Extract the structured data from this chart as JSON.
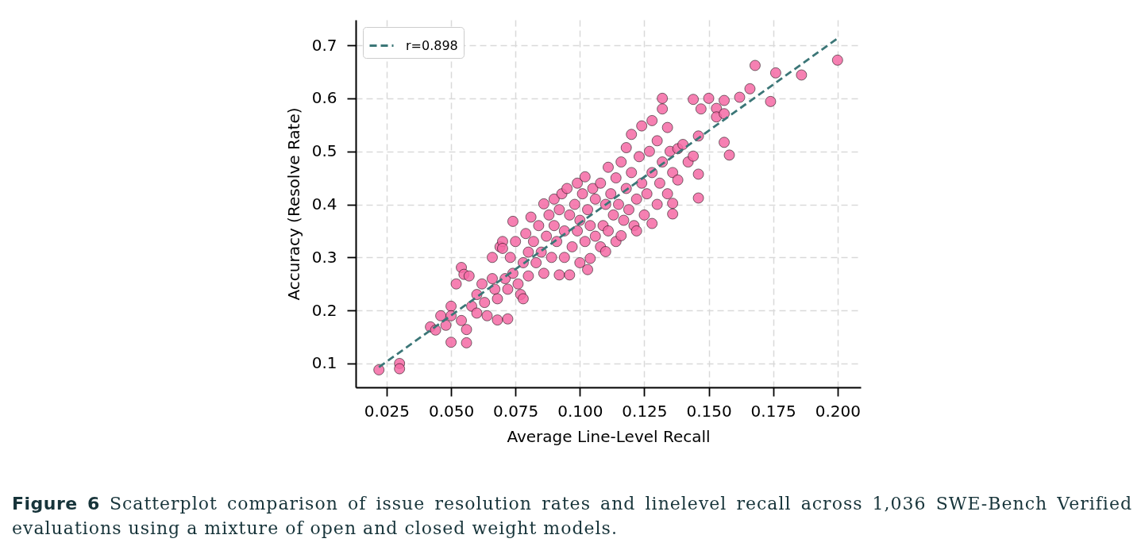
{
  "chart_data": {
    "type": "scatter",
    "xlabel": "Average Line-Level Recall",
    "ylabel": "Accuracy (Resolve Rate)",
    "xlim": [
      0.013,
      0.209
    ],
    "ylim": [
      0.055,
      0.748
    ],
    "xticks": [
      0.025,
      {
        "value": 0.05,
        "label": "0.050"
      },
      0.075,
      {
        "value": 0.1,
        "label": "0.100"
      },
      0.125,
      {
        "value": 0.15,
        "label": "0.150"
      },
      0.175,
      {
        "value": 0.2,
        "label": "0.200"
      }
    ],
    "yticks": [
      0.1,
      0.2,
      0.3,
      0.4,
      0.5,
      0.6,
      0.7
    ],
    "grid": true,
    "legend": "top left",
    "annotations": [
      "Figure 6",
      "Scatterplot comparison of issue resolution rates and linelevel recall across 1,036 SWE-Bench Verified evaluations using a mixture of open and closed weight models."
    ],
    "series": [
      {
        "type": "scatter",
        "color": "#f46aa5",
        "marker": "circle",
        "x": [
          0.022,
          0.03,
          0.03,
          0.042,
          0.044,
          0.046,
          0.048,
          0.05,
          0.05,
          0.05,
          0.052,
          0.054,
          0.054,
          0.055,
          0.056,
          0.056,
          0.057,
          0.058,
          0.06,
          0.06,
          0.062,
          0.063,
          0.064,
          0.066,
          0.066,
          0.067,
          0.068,
          0.068,
          0.069,
          0.07,
          0.07,
          0.071,
          0.072,
          0.072,
          0.073,
          0.074,
          0.074,
          0.075,
          0.076,
          0.077,
          0.078,
          0.078,
          0.079,
          0.08,
          0.08,
          0.081,
          0.082,
          0.083,
          0.084,
          0.085,
          0.086,
          0.086,
          0.087,
          0.088,
          0.089,
          0.09,
          0.09,
          0.091,
          0.092,
          0.092,
          0.093,
          0.094,
          0.094,
          0.095,
          0.096,
          0.096,
          0.097,
          0.098,
          0.099,
          0.099,
          0.1,
          0.1,
          0.101,
          0.102,
          0.102,
          0.103,
          0.103,
          0.104,
          0.104,
          0.105,
          0.106,
          0.106,
          0.108,
          0.108,
          0.109,
          0.11,
          0.11,
          0.111,
          0.111,
          0.112,
          0.113,
          0.114,
          0.114,
          0.115,
          0.116,
          0.116,
          0.117,
          0.118,
          0.118,
          0.119,
          0.12,
          0.12,
          0.121,
          0.122,
          0.122,
          0.123,
          0.124,
          0.124,
          0.125,
          0.126,
          0.127,
          0.128,
          0.128,
          0.128,
          0.13,
          0.13,
          0.131,
          0.132,
          0.132,
          0.132,
          0.134,
          0.134,
          0.135,
          0.136,
          0.136,
          0.136,
          0.138,
          0.138,
          0.14,
          0.142,
          0.144,
          0.144,
          0.146,
          0.146,
          0.146,
          0.147,
          0.15,
          0.153,
          0.153,
          0.156,
          0.156,
          0.156,
          0.158,
          0.162,
          0.166,
          0.168,
          0.174,
          0.176,
          0.186,
          0.2
        ],
        "values": [
          0.088,
          0.1,
          0.09,
          0.169,
          0.163,
          0.19,
          0.172,
          0.208,
          0.19,
          0.14,
          0.25,
          0.181,
          0.281,
          0.268,
          0.139,
          0.164,
          0.265,
          0.208,
          0.23,
          0.195,
          0.25,
          0.215,
          0.19,
          0.3,
          0.26,
          0.24,
          0.182,
          0.222,
          0.32,
          0.33,
          0.317,
          0.26,
          0.184,
          0.24,
          0.3,
          0.368,
          0.27,
          0.33,
          0.25,
          0.23,
          0.222,
          0.29,
          0.345,
          0.31,
          0.265,
          0.376,
          0.33,
          0.29,
          0.36,
          0.31,
          0.401,
          0.27,
          0.34,
          0.38,
          0.3,
          0.36,
          0.41,
          0.33,
          0.267,
          0.39,
          0.42,
          0.3,
          0.35,
          0.43,
          0.267,
          0.38,
          0.32,
          0.4,
          0.44,
          0.35,
          0.29,
          0.37,
          0.42,
          0.33,
          0.452,
          0.277,
          0.39,
          0.298,
          0.36,
          0.43,
          0.34,
          0.41,
          0.44,
          0.32,
          0.36,
          0.311,
          0.4,
          0.47,
          0.35,
          0.42,
          0.38,
          0.45,
          0.33,
          0.4,
          0.341,
          0.48,
          0.37,
          0.507,
          0.43,
          0.39,
          0.532,
          0.46,
          0.36,
          0.35,
          0.41,
          0.49,
          0.548,
          0.44,
          0.38,
          0.42,
          0.5,
          0.364,
          0.558,
          0.46,
          0.4,
          0.52,
          0.44,
          0.6,
          0.58,
          0.48,
          0.42,
          0.545,
          0.5,
          0.402,
          0.382,
          0.46,
          0.446,
          0.505,
          0.513,
          0.48,
          0.598,
          0.491,
          0.529,
          0.457,
          0.412,
          0.58,
          0.6,
          0.581,
          0.565,
          0.596,
          0.571,
          0.517,
          0.493,
          0.602,
          0.618,
          0.662,
          0.594,
          0.648,
          0.644,
          0.672
        ]
      },
      {
        "type": "line",
        "name": "r=0.898",
        "color": "#3b7677",
        "line_style": "dashed",
        "x": [
          0.022,
          0.2
        ],
        "values": [
          0.093,
          0.713
        ]
      }
    ]
  }
}
